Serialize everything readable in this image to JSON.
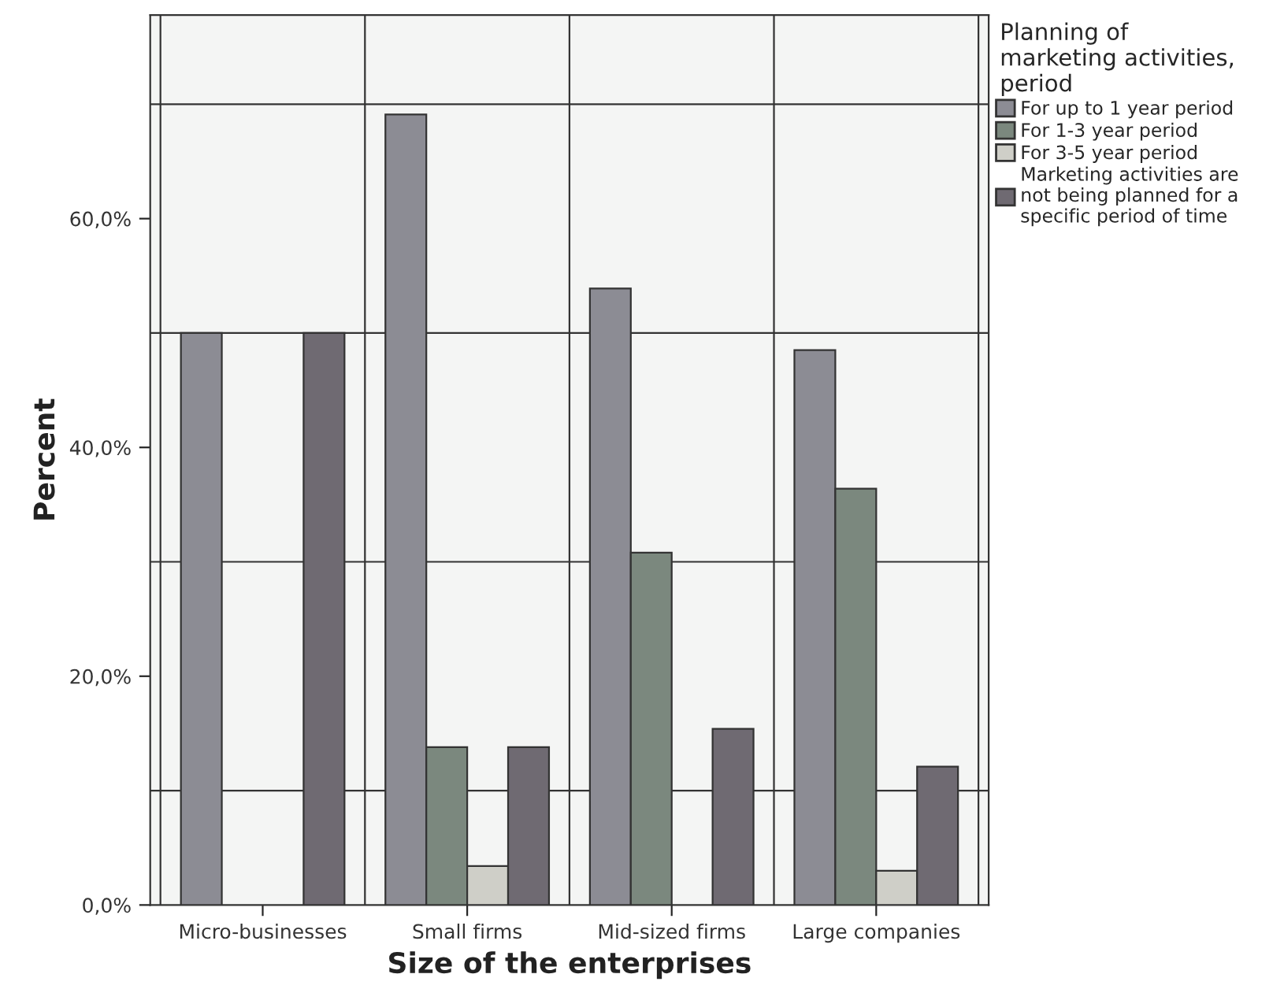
{
  "chart_data": {
    "type": "bar",
    "xlabel": "Size of the enterprises",
    "ylabel": "Percent",
    "legend_title": "Planning of\nmarketing activities,\nperiod",
    "categories": [
      "Micro-businesses",
      "Small firms",
      "Mid-sized firms",
      "Large companies"
    ],
    "series": [
      {
        "name": "For up to 1 year period",
        "color": "#8c8c94",
        "values": [
          50.0,
          69.1,
          53.9,
          48.5
        ]
      },
      {
        "name": "For 1-3 year period",
        "color": "#7b887e",
        "values": [
          null,
          13.8,
          30.8,
          36.4
        ]
      },
      {
        "name": "For 3-5 year period",
        "color": "#cfcfc8",
        "values": [
          null,
          3.4,
          null,
          3.0
        ]
      },
      {
        "name": "Marketing activities are\nnot being planned for a\nspecific period of time",
        "color": "#6f6a72",
        "values": [
          50.0,
          13.8,
          15.4,
          12.1
        ]
      }
    ],
    "ylim": [
      0,
      77.8
    ],
    "yticks": [
      {
        "value": 0,
        "label": "0,0%"
      },
      {
        "value": 20,
        "label": "20,0%"
      },
      {
        "value": 40,
        "label": "40,0%"
      },
      {
        "value": 60,
        "label": "60,0%"
      }
    ],
    "grid": true,
    "legend": "top right"
  }
}
